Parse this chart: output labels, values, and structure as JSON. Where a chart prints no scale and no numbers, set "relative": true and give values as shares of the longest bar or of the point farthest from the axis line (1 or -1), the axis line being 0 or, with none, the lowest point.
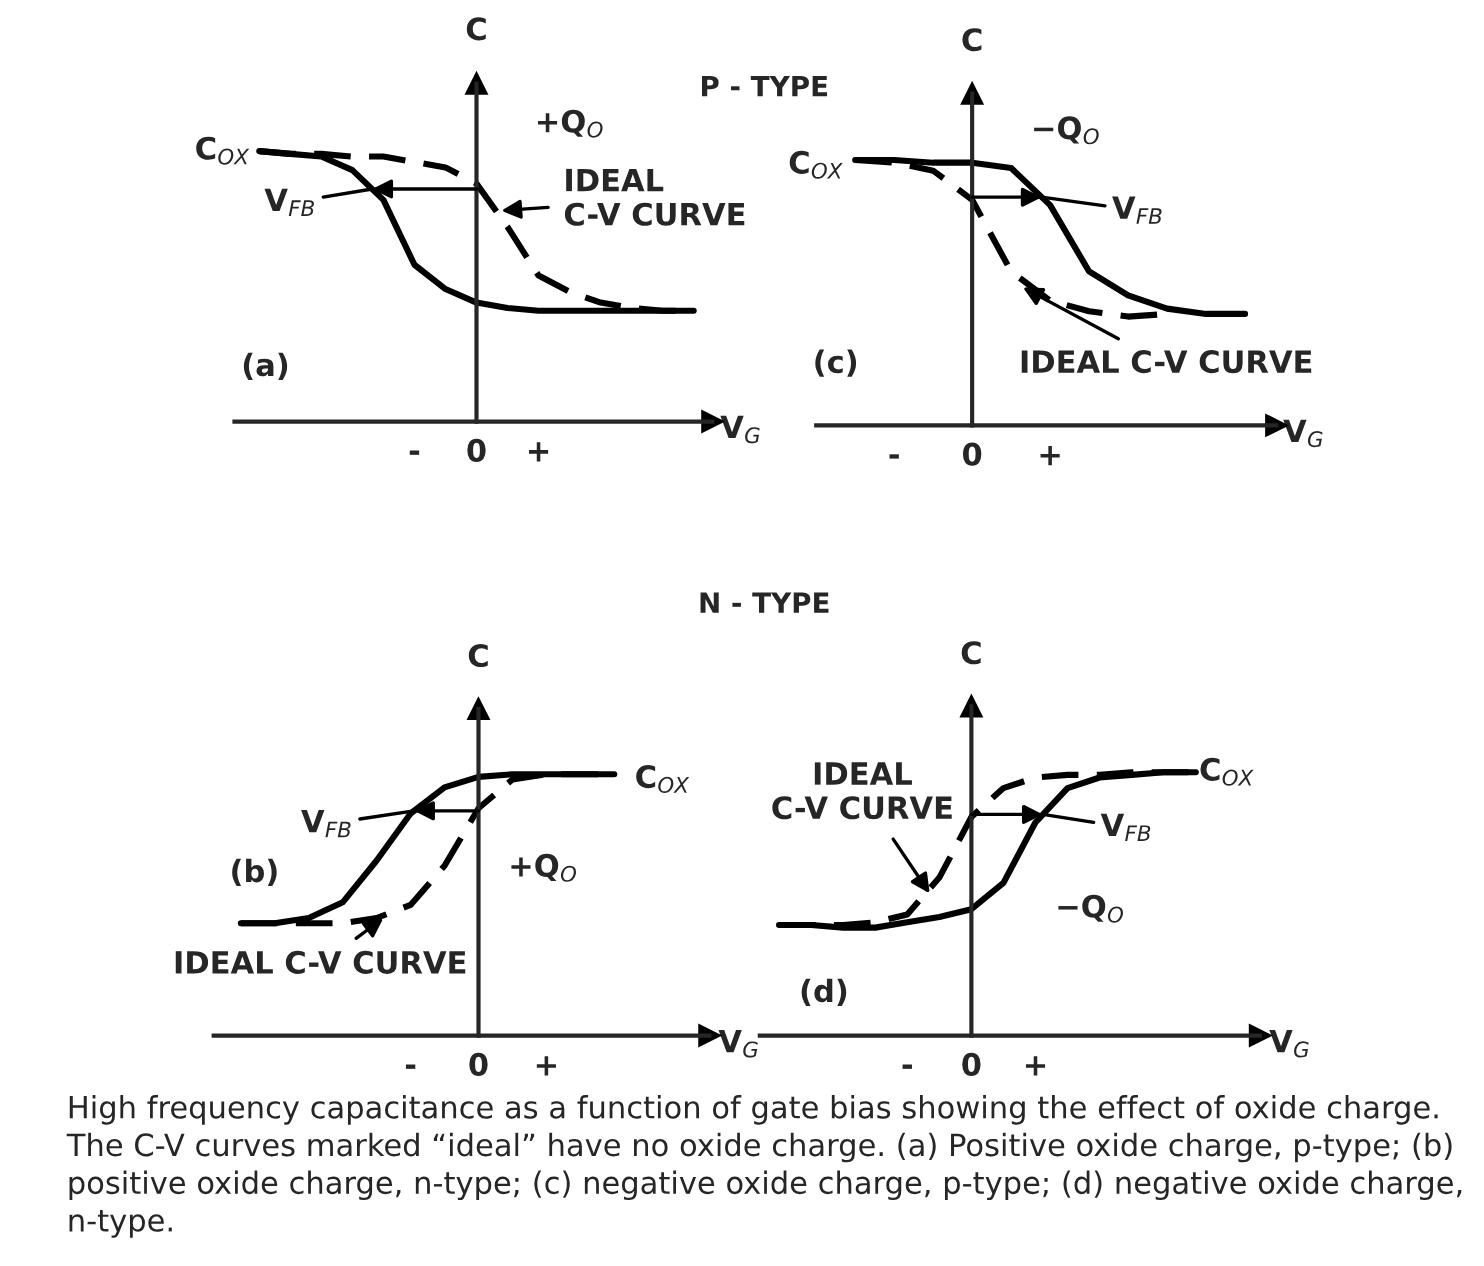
{
  "chart_data": [
    {
      "type": "line",
      "xlabel": "V$_{G}$",
      "ylabel": "C",
      "relative": true,
      "categories": [
        null,
        null,
        null,
        null,
        null,
        "-",
        null,
        "0",
        null,
        "+",
        null,
        null,
        null,
        null,
        null
      ],
      "series": [
        {
          "color": "#000000",
          "line_style": "solid",
          "values": [
            1.0,
            0.99,
            0.98,
            0.93,
            0.82,
            0.58,
            0.49,
            0.44,
            0.42,
            0.41,
            0.41,
            0.41,
            0.41,
            0.41,
            0.41
          ]
        },
        {
          "color": "#000000",
          "line_style": "dashed",
          "values": [
            1.0,
            0.99,
            0.99,
            0.98,
            0.98,
            0.96,
            0.94,
            0.88,
            0.72,
            0.54,
            0.48,
            0.44,
            0.42,
            0.41,
            0.41
          ]
        }
      ],
      "annotations": [
        "C$_{OX}$",
        "+Q$_{O}$",
        "(a)",
        "V$_{FB}$",
        "IDEAL\nC-V CURVE",
        "P - TYPE"
      ]
    },
    {
      "type": "line",
      "xlabel": "V$_{G}$",
      "ylabel": "C",
      "relative": true,
      "categories": [
        null,
        "-",
        null,
        "0",
        null,
        "+",
        null,
        null,
        null,
        null,
        null
      ],
      "series": [
        {
          "color": "#000000",
          "line_style": "solid",
          "values": [
            1.0,
            1.0,
            0.99,
            0.99,
            0.97,
            0.83,
            0.58,
            0.49,
            0.44,
            0.42,
            0.42
          ]
        },
        {
          "color": "#000000",
          "line_style": "dashed",
          "values": [
            1.0,
            0.99,
            0.96,
            0.85,
            0.58,
            0.47,
            0.43,
            0.41,
            0.42,
            null,
            null
          ]
        }
      ],
      "annotations": [
        "C$_{OX}$",
        "−Q$_{O}$",
        "(c)",
        "V$_{FB}$",
        "IDEAL C-V CURVE"
      ]
    },
    {
      "type": "line",
      "xlabel": "V$_{G}$",
      "ylabel": "C",
      "relative": true,
      "categories": [
        null,
        null,
        null,
        null,
        null,
        "-",
        null,
        "0",
        null,
        "+",
        null,
        null
      ],
      "series": [
        {
          "color": "#000000",
          "line_style": "solid",
          "values": [
            0.43,
            0.43,
            0.45,
            0.51,
            0.67,
            0.85,
            0.95,
            0.99,
            1.0,
            1.0,
            1.0,
            1.0
          ]
        },
        {
          "color": "#000000",
          "line_style": "dashed",
          "values": [
            0.43,
            0.43,
            0.43,
            0.43,
            0.45,
            0.5,
            0.65,
            0.87,
            0.98,
            1.0,
            1.0,
            1.0
          ]
        }
      ],
      "annotations": [
        "C$_{OX}$",
        "+Q$_{O}$",
        "(b)",
        "V$_{FB}$",
        "IDEAL C-V CURVE",
        "N - TYPE"
      ]
    },
    {
      "type": "line",
      "xlabel": "V$_{G}$",
      "ylabel": "C",
      "relative": true,
      "categories": [
        null,
        null,
        null,
        null,
        "-",
        null,
        "0",
        null,
        "+",
        null,
        null,
        null,
        null,
        null
      ],
      "series": [
        {
          "color": "#000000",
          "line_style": "solid",
          "values": [
            0.42,
            0.42,
            0.41,
            0.41,
            0.43,
            0.45,
            0.48,
            0.58,
            0.81,
            0.94,
            0.98,
            0.99,
            1.0,
            1.0
          ]
        },
        {
          "color": "#000000",
          "line_style": "dashed",
          "values": [
            0.42,
            0.42,
            0.42,
            0.43,
            0.46,
            0.6,
            0.83,
            0.94,
            0.98,
            0.99,
            0.99,
            1.0,
            1.0,
            1.0
          ]
        }
      ],
      "annotations": [
        "C$_{OX}$",
        "−Q$_{O}$",
        "(d)",
        "V$_{FB}$",
        "IDEAL\nC-V CURVE",
        "High frequency capacitance as a function of gate bias showing the effect of oxide charge. The C-V curves marked “ideal” have no oxide charge. (a) Positive oxide charge, p-type; (b) positive oxide charge, n-type; (c) negative oxide charge, p-type; (d) negative oxide charge, n-type."
      ]
    }
  ]
}
